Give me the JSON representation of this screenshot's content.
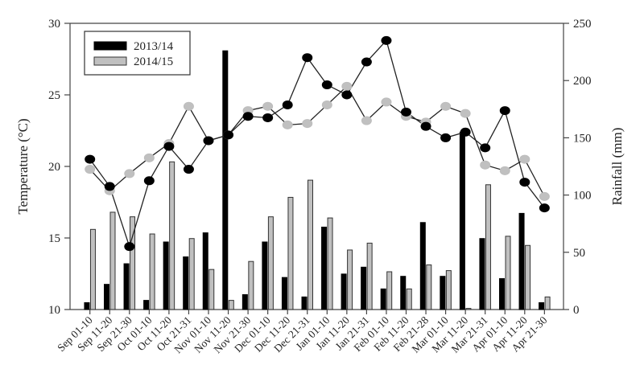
{
  "chart_data": {
    "type": "bar+line",
    "title": "",
    "xlabel": "",
    "ylabel_left": "Temperature (°C)",
    "ylabel_right": "Rainfall (mm)",
    "ylim_left": [
      10,
      30
    ],
    "yticks_left": [
      10,
      15,
      20,
      25,
      30
    ],
    "ylim_right": [
      0,
      250
    ],
    "yticks_right": [
      0,
      50,
      100,
      150,
      200,
      250
    ],
    "grid": false,
    "legend_position": "upper-left",
    "categories": [
      "Sep 01-10",
      "Sep 11-20",
      "Sep 21-30",
      "Oct 01-10",
      "Oct 11-20",
      "Oct 21-31",
      "Nov 01-10",
      "Nov 11-20",
      "Nov 21-30",
      "Dec 01-10",
      "Dec 11-20",
      "Dec 21-31",
      "Jan 01-10",
      "Jan 11-20",
      "Jan 21-31",
      "Feb 01-10",
      "Feb 11-20",
      "Feb 21-28",
      "Mar 01-10",
      "Mar 11-20",
      "Mar 21-31",
      "Apr 01-10",
      "Apr 11-20",
      "Apr 21-30"
    ],
    "series": [
      {
        "name": "2013/14",
        "kind": "rainfall-bar",
        "axis": "right",
        "color": "#000000",
        "values": [
          6,
          22,
          40,
          8,
          59,
          46,
          67,
          226,
          13,
          59,
          28,
          11,
          72,
          31,
          37,
          18,
          29,
          76,
          29,
          155,
          62,
          27,
          84,
          6
        ]
      },
      {
        "name": "2014/15",
        "kind": "rainfall-bar",
        "axis": "right",
        "color": "#c0c0c0",
        "values": [
          70,
          85,
          81,
          66,
          129,
          62,
          35,
          8,
          42,
          81,
          98,
          113,
          80,
          52,
          58,
          33,
          18,
          39,
          34,
          1,
          109,
          64,
          56,
          11
        ]
      },
      {
        "name": "2013/14",
        "kind": "temperature-line",
        "axis": "left",
        "color": "#000000",
        "values": [
          20.5,
          18.6,
          14.4,
          19.0,
          21.4,
          19.8,
          21.8,
          22.2,
          23.5,
          23.4,
          24.3,
          27.6,
          25.7,
          25.0,
          27.3,
          28.8,
          23.8,
          22.8,
          22.0,
          22.4,
          21.3,
          23.9,
          18.9,
          17.1
        ]
      },
      {
        "name": "2014/15",
        "kind": "temperature-line",
        "axis": "left",
        "color": "#c0c0c0",
        "values": [
          19.8,
          18.3,
          19.5,
          20.6,
          21.6,
          24.2,
          21.8,
          22.2,
          23.9,
          24.2,
          22.9,
          23.0,
          24.3,
          25.6,
          23.2,
          24.5,
          23.5,
          23.1,
          24.2,
          23.7,
          20.1,
          19.7,
          20.5,
          17.9
        ]
      }
    ],
    "legend": [
      {
        "label": "2013/14",
        "color": "#000000"
      },
      {
        "label": "2014/15",
        "color": "#c0c0c0"
      }
    ]
  }
}
